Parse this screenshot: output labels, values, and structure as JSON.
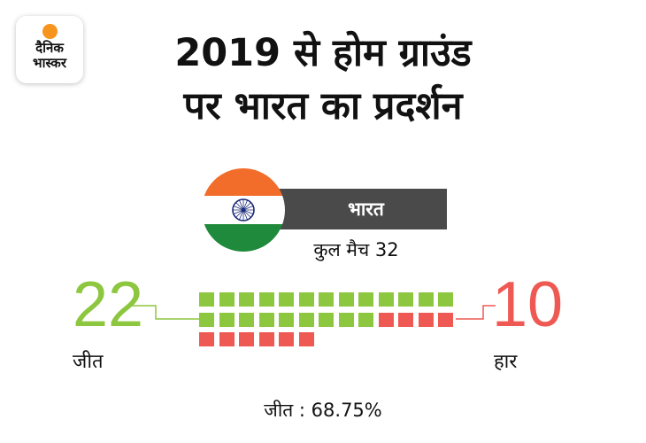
{
  "brand": {
    "line1": "दैनिक",
    "line2": "भास्कर",
    "accent": "#f7941d"
  },
  "title": {
    "line1": "2019 से होम ग्राउंड",
    "line2": "पर भारत का प्रदर्शन"
  },
  "team": {
    "name": "भारत",
    "total_label": "कुल मैच 32"
  },
  "record": {
    "wins": {
      "value": "22",
      "label": "जीत",
      "count": 22,
      "color": "#8dc63f"
    },
    "losses": {
      "value": "10",
      "label": "हार",
      "count": 10,
      "color": "#ee5a53"
    }
  },
  "win_percentage_text": "जीत : 68.75%",
  "flag_colors": {
    "saffron": "#f26c2a",
    "white": "#ffffff",
    "green": "#1f8a3b",
    "chakra": "#1b2a7a"
  }
}
